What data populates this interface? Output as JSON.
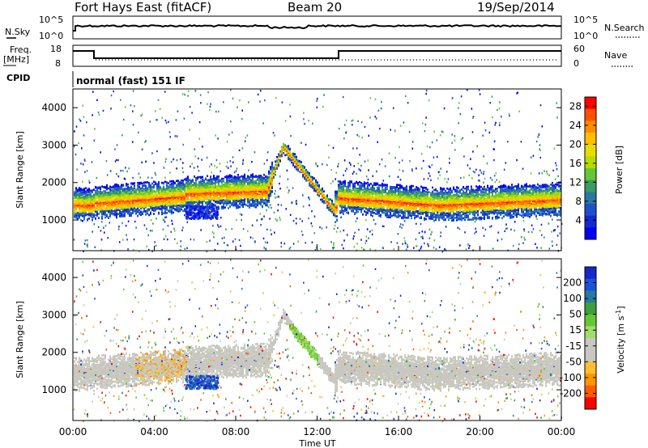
{
  "header": {
    "station": "Fort Hays East (fitACF)",
    "beam": "Beam 20",
    "date": "19/Sep/2014"
  },
  "noise_panel": {
    "left_label": "N.Sky",
    "right_label": "N.Search",
    "left_ticks": [
      "10^5",
      "10^0"
    ],
    "right_ticks": [
      "10^5",
      "10^0"
    ]
  },
  "freq_panel": {
    "left_label_line1": "Freq.",
    "left_label_line2": "[MHz]",
    "right_label": "Nave",
    "left_ticks": [
      "18",
      "8"
    ],
    "right_ticks": [
      "60",
      "0"
    ]
  },
  "cpid": {
    "label": "CPID",
    "text": "normal (fast) 151 IF"
  },
  "chart_data": [
    {
      "type": "heatmap",
      "title": "",
      "ylabel": "Slant Range [km]",
      "xlabel": "",
      "ylim": [
        180,
        4500
      ],
      "yticks": [
        "1000",
        "2000",
        "3000",
        "4000"
      ],
      "colorbar": {
        "label": "Power [dB]",
        "ticks": [
          "28",
          "24",
          "20",
          "16",
          "12",
          "8",
          "4"
        ],
        "colors": [
          "#ff0000",
          "#ff5000",
          "#ff8c00",
          "#ffbe00",
          "#e6dc00",
          "#b4dc00",
          "#64c832",
          "#3c9a64",
          "#2878a0",
          "#1e50c8",
          "#1428d2",
          "#0000ff"
        ]
      }
    },
    {
      "type": "heatmap",
      "title": "",
      "ylabel": "Slant Range [km]",
      "xlabel": "Time UT",
      "ylim": [
        180,
        4500
      ],
      "yticks": [
        "1000",
        "2000",
        "3000",
        "4000"
      ],
      "xticks": [
        "00:00",
        "04:00",
        "08:00",
        "12:00",
        "16:00",
        "20:00",
        "00:00"
      ],
      "xlim_hours": [
        0,
        24
      ],
      "colorbar": {
        "label": "Velocity [m s^-1]",
        "ticks": [
          "200",
          "100",
          "50",
          "15",
          "-15",
          "-50",
          "-100",
          "-200"
        ],
        "colors": [
          "#1428c8",
          "#1e50dc",
          "#2878a0",
          "#3ca03c",
          "#64c832",
          "#a0dc6e",
          "#c8c8c0",
          "#c8c8c0",
          "#ffbe32",
          "#ff9600",
          "#ff5a00",
          "#ff0000"
        ]
      }
    }
  ],
  "axis_title": "Time UT"
}
